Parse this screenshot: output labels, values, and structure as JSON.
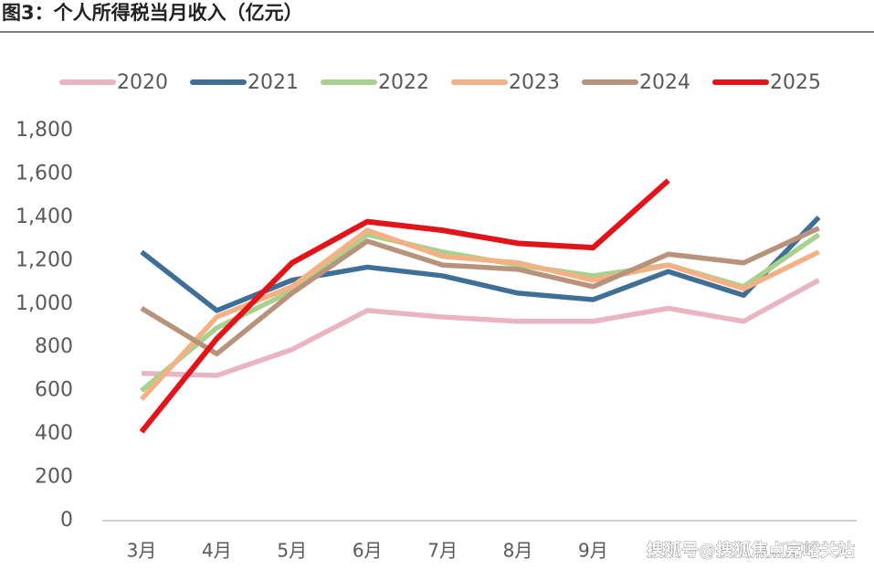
{
  "chart_data": {
    "type": "line",
    "title": "图3：个人所得税当月收入（亿元）",
    "categories": [
      "3月",
      "4月",
      "5月",
      "6月",
      "7月",
      "8月",
      "9月",
      null,
      null,
      null
    ],
    "series": [
      {
        "name": "2020",
        "color": "#e9b5c2",
        "values": [
          680,
          670,
          790,
          970,
          940,
          920,
          920,
          980,
          920,
          1110
        ]
      },
      {
        "name": "2021",
        "color": "#3f6f97",
        "values": [
          1240,
          970,
          1110,
          1170,
          1130,
          1050,
          1020,
          1150,
          1040,
          1400
        ]
      },
      {
        "name": "2022",
        "color": "#a9d18e",
        "values": [
          600,
          890,
          1060,
          1320,
          1240,
          1180,
          1130,
          1180,
          1080,
          1320
        ]
      },
      {
        "name": "2023",
        "color": "#f4b183",
        "values": [
          560,
          940,
          1080,
          1340,
          1220,
          1190,
          1110,
          1180,
          1070,
          1240
        ]
      },
      {
        "name": "2024",
        "color": "#b8937c",
        "values": [
          980,
          770,
          1050,
          1290,
          1180,
          1160,
          1080,
          1230,
          1190,
          1350
        ]
      },
      {
        "name": "2025",
        "color": "#e3131a",
        "values": [
          410,
          840,
          1190,
          1380,
          1340,
          1280,
          1260,
          1570,
          null,
          null
        ]
      }
    ],
    "ylim": [
      0,
      1800
    ],
    "yticks": [
      0,
      200,
      400,
      600,
      800,
      {
        "value": 1000,
        "label": "1,000"
      },
      {
        "value": 1200,
        "label": "1,200"
      },
      {
        "value": 1400,
        "label": "1,400"
      },
      {
        "value": 1600,
        "label": "1,600"
      },
      {
        "value": 1800,
        "label": "1,800"
      }
    ],
    "legend": "top",
    "watermark": "搜狐号@搜狐焦点嘉峪关站"
  }
}
